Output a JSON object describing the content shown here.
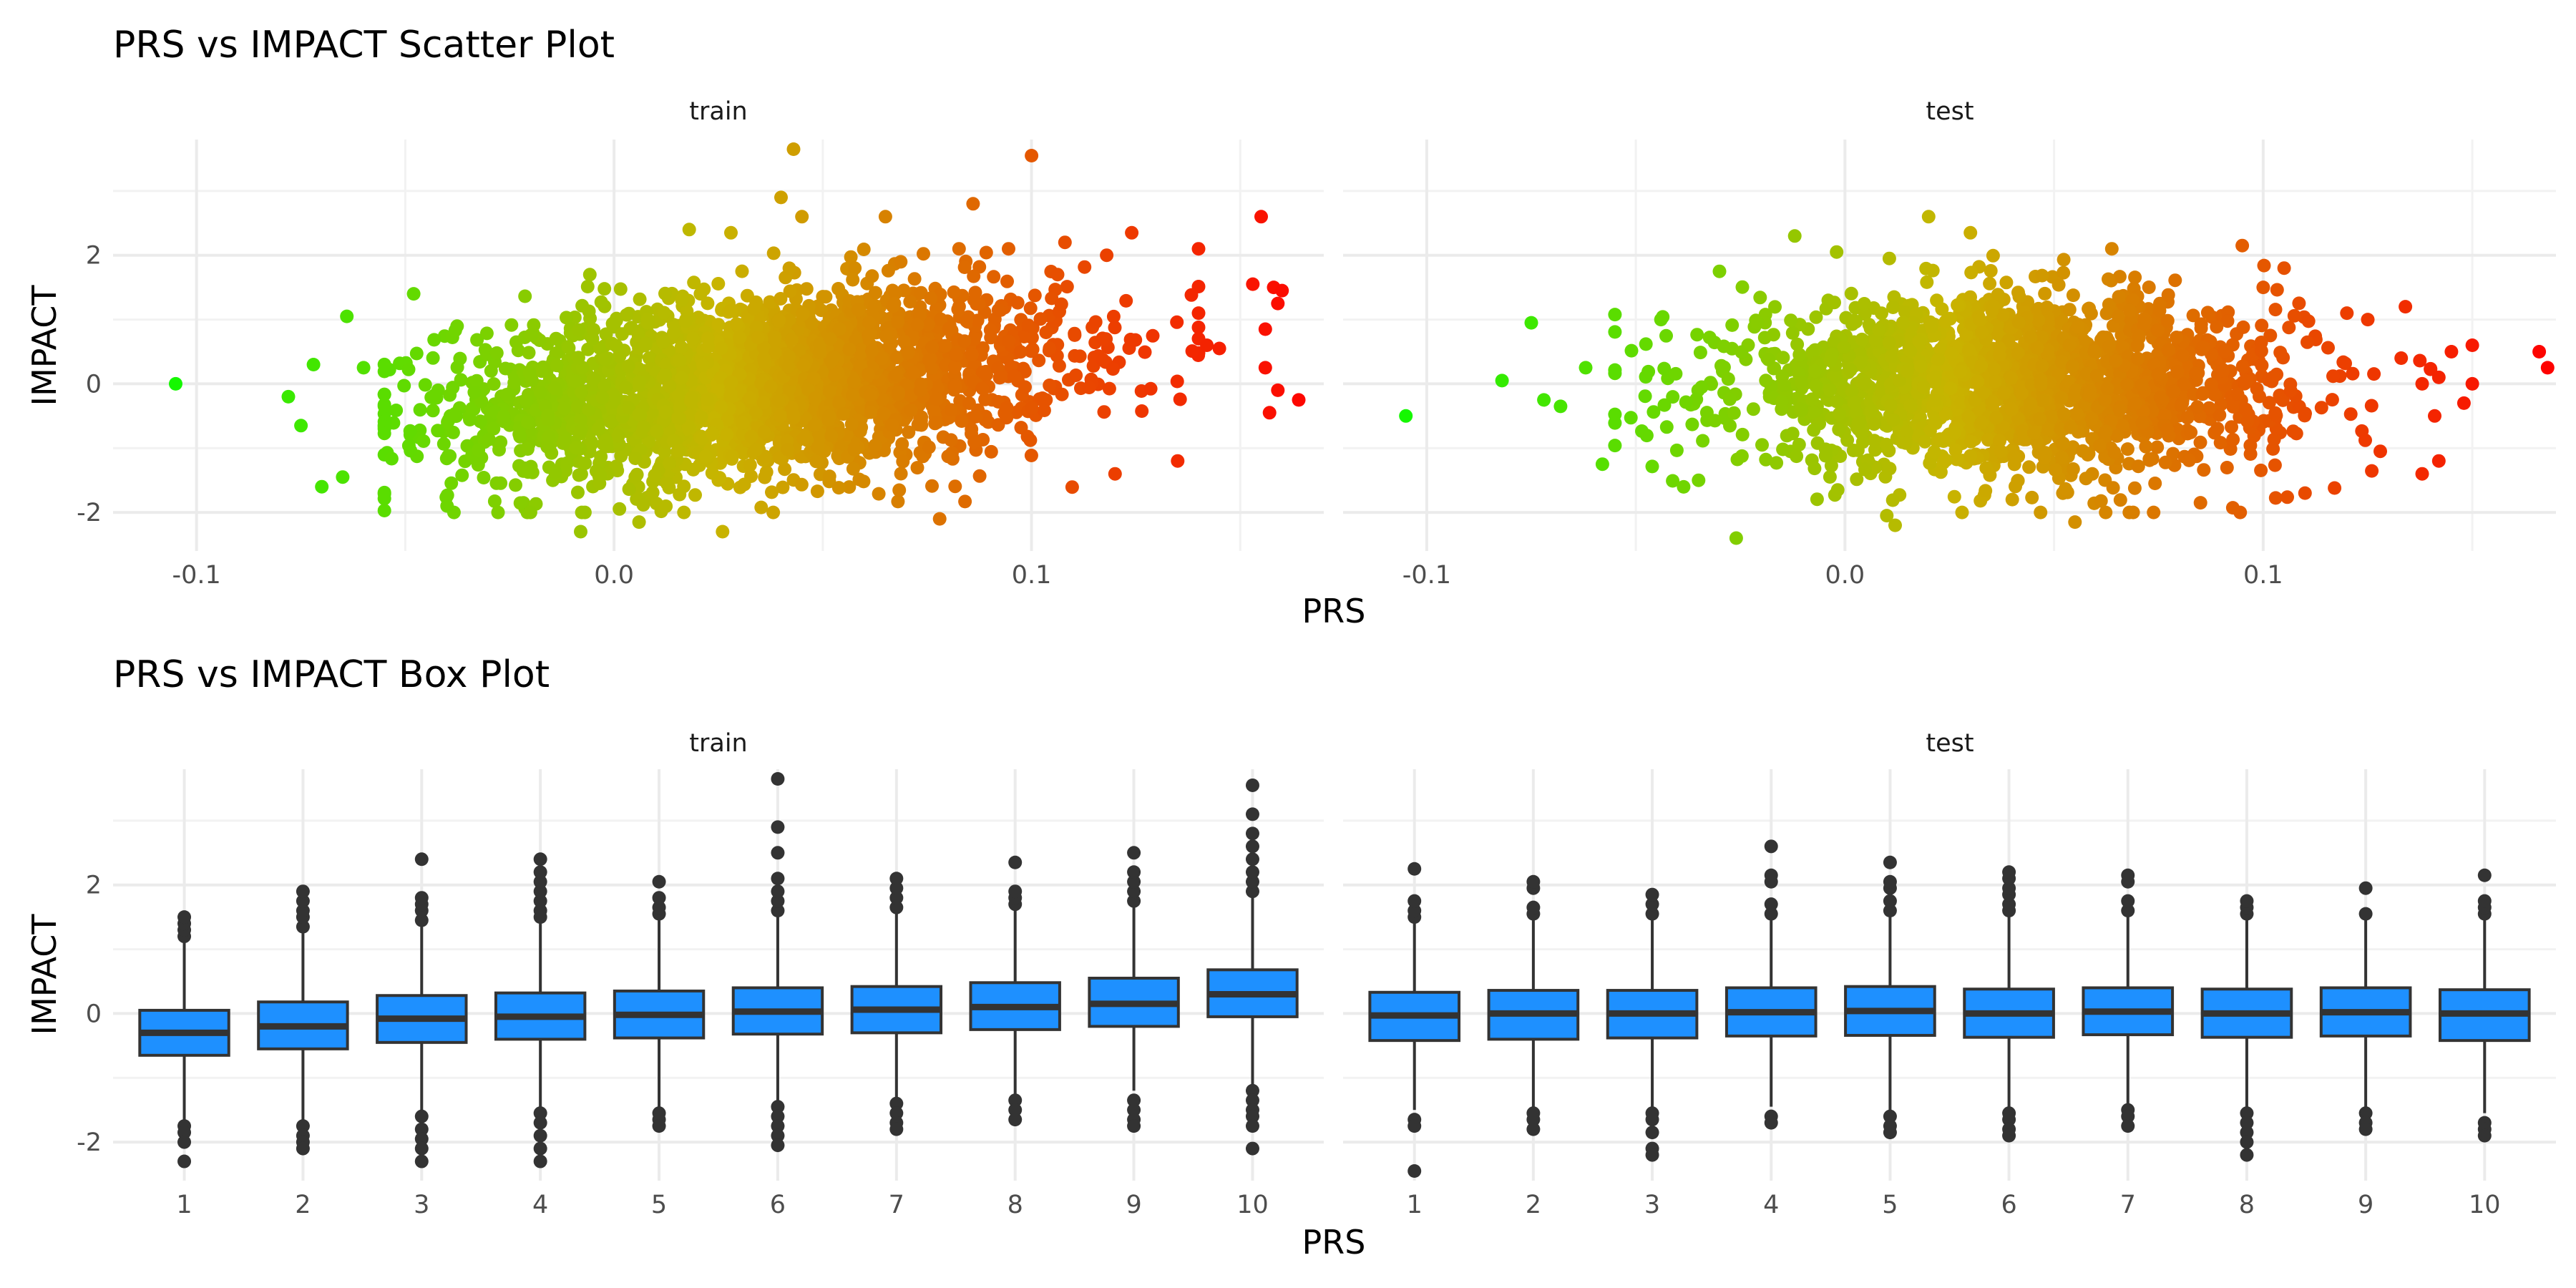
{
  "chart_data": [
    {
      "type": "scatter",
      "title": "PRS vs IMPACT Scatter Plot",
      "xlabel": "PRS",
      "ylabel": "IMPACT",
      "xlim": [
        -0.12,
        0.17
      ],
      "ylim": [
        -2.6,
        3.8
      ],
      "x_ticks": [
        "-0.1",
        "0.0",
        "0.1"
      ],
      "x_tick_values": [
        -0.1,
        0.0,
        0.1
      ],
      "y_ticks": [
        "-2",
        "0",
        "2"
      ],
      "y_tick_values": [
        -2,
        0,
        2
      ],
      "grid": true,
      "color_scale": {
        "low": "#00ff00",
        "mid": "#c8b400",
        "high": "#ff0000"
      },
      "panels": [
        {
          "name": "train",
          "cloud": {
            "x_mean": 0.035,
            "x_sd": 0.036,
            "y_mean": 0.0,
            "y_sd": 0.7,
            "slope": 5.5,
            "n": 2600
          },
          "points": [
            {
              "x": -0.105,
              "y": 0.0
            },
            {
              "x": -0.078,
              "y": -0.2
            },
            {
              "x": -0.075,
              "y": -0.65
            },
            {
              "x": -0.072,
              "y": 0.3
            },
            {
              "x": -0.07,
              "y": -1.6
            },
            {
              "x": -0.064,
              "y": 1.05
            },
            {
              "x": -0.065,
              "y": -1.45
            },
            {
              "x": -0.06,
              "y": 0.25
            },
            {
              "x": -0.048,
              "y": 1.4
            },
            {
              "x": -0.04,
              "y": -1.9
            },
            {
              "x": -0.02,
              "y": -2.0
            },
            {
              "x": -0.008,
              "y": -2.3
            },
            {
              "x": 0.006,
              "y": -2.15
            },
            {
              "x": 0.026,
              "y": -2.3
            },
            {
              "x": 0.018,
              "y": 2.4
            },
            {
              "x": 0.028,
              "y": 2.35
            },
            {
              "x": 0.04,
              "y": 2.9
            },
            {
              "x": 0.043,
              "y": 3.65
            },
            {
              "x": 0.045,
              "y": 2.6
            },
            {
              "x": 0.065,
              "y": 2.6
            },
            {
              "x": 0.078,
              "y": -2.1
            },
            {
              "x": 0.086,
              "y": 2.8
            },
            {
              "x": 0.1,
              "y": 3.55
            },
            {
              "x": 0.108,
              "y": 2.2
            },
            {
              "x": 0.118,
              "y": 2.0
            },
            {
              "x": 0.12,
              "y": -1.4
            },
            {
              "x": 0.124,
              "y": 2.35
            },
            {
              "x": 0.135,
              "y": -1.2
            },
            {
              "x": 0.14,
              "y": 1.1
            },
            {
              "x": 0.142,
              "y": 0.6
            },
            {
              "x": 0.145,
              "y": 0.55
            },
            {
              "x": 0.153,
              "y": 1.55
            },
            {
              "x": 0.155,
              "y": 2.6
            },
            {
              "x": 0.156,
              "y": 0.85
            },
            {
              "x": 0.156,
              "y": 0.25
            },
            {
              "x": 0.157,
              "y": -0.45
            },
            {
              "x": 0.158,
              "y": 1.5
            },
            {
              "x": 0.159,
              "y": -0.1
            },
            {
              "x": 0.16,
              "y": 1.45
            },
            {
              "x": 0.159,
              "y": 1.25
            },
            {
              "x": 0.164,
              "y": -0.25
            }
          ]
        },
        {
          "name": "test",
          "cloud": {
            "x_mean": 0.04,
            "x_sd": 0.033,
            "y_mean": 0.0,
            "y_sd": 0.65,
            "slope": 0.0,
            "n": 2000
          },
          "points": [
            {
              "x": -0.105,
              "y": -0.5
            },
            {
              "x": -0.082,
              "y": 0.05
            },
            {
              "x": -0.075,
              "y": 0.95
            },
            {
              "x": -0.072,
              "y": -0.25
            },
            {
              "x": -0.068,
              "y": -0.35
            },
            {
              "x": -0.062,
              "y": 0.25
            },
            {
              "x": -0.058,
              "y": -1.25
            },
            {
              "x": -0.044,
              "y": 1.0
            },
            {
              "x": -0.035,
              "y": -1.5
            },
            {
              "x": -0.03,
              "y": 1.75
            },
            {
              "x": -0.026,
              "y": -2.4
            },
            {
              "x": -0.012,
              "y": 2.3
            },
            {
              "x": -0.002,
              "y": 2.05
            },
            {
              "x": 0.01,
              "y": -2.05
            },
            {
              "x": 0.012,
              "y": -2.2
            },
            {
              "x": 0.02,
              "y": 2.6
            },
            {
              "x": 0.03,
              "y": 2.35
            },
            {
              "x": 0.04,
              "y": -1.8
            },
            {
              "x": 0.055,
              "y": -2.15
            },
            {
              "x": 0.068,
              "y": -2.0
            },
            {
              "x": 0.085,
              "y": -1.85
            },
            {
              "x": 0.095,
              "y": 2.15
            },
            {
              "x": 0.1,
              "y": 1.5
            },
            {
              "x": 0.105,
              "y": 1.8
            },
            {
              "x": 0.11,
              "y": -1.7
            },
            {
              "x": 0.12,
              "y": 1.1
            },
            {
              "x": 0.125,
              "y": 1.0
            },
            {
              "x": 0.128,
              "y": -1.05
            },
            {
              "x": 0.133,
              "y": 0.4
            },
            {
              "x": 0.134,
              "y": 1.2
            },
            {
              "x": 0.138,
              "y": -1.4
            },
            {
              "x": 0.138,
              "y": 0.0
            },
            {
              "x": 0.141,
              "y": -0.5
            },
            {
              "x": 0.142,
              "y": -1.2
            },
            {
              "x": 0.142,
              "y": 0.1
            },
            {
              "x": 0.145,
              "y": 0.5
            },
            {
              "x": 0.148,
              "y": -0.3
            },
            {
              "x": 0.15,
              "y": 0.6
            },
            {
              "x": 0.15,
              "y": 0.0
            },
            {
              "x": 0.166,
              "y": 0.5
            },
            {
              "x": 0.168,
              "y": 0.25
            }
          ]
        }
      ]
    },
    {
      "type": "box",
      "title": "PRS vs IMPACT Box Plot",
      "xlabel": "PRS",
      "ylabel": "IMPACT",
      "categories": [
        "1",
        "2",
        "3",
        "4",
        "5",
        "6",
        "7",
        "8",
        "9",
        "10"
      ],
      "ylim": [
        -2.6,
        3.8
      ],
      "y_ticks": [
        "-2",
        "0",
        "2"
      ],
      "y_tick_values": [
        -2,
        0,
        2
      ],
      "grid": true,
      "box_color": "#1e90ff",
      "line_color": "#333333",
      "panels": [
        {
          "name": "train",
          "boxes": [
            {
              "q1": -0.65,
              "median": -0.3,
              "q3": 0.05,
              "lower": -1.7,
              "upper": 1.1,
              "outliers": [
                1.2,
                1.3,
                1.4,
                1.5,
                -1.75,
                -1.85,
                -2.0,
                -2.3
              ]
            },
            {
              "q1": -0.55,
              "median": -0.2,
              "q3": 0.18,
              "lower": -1.65,
              "upper": 1.25,
              "outliers": [
                1.35,
                1.5,
                1.6,
                1.75,
                1.9,
                -1.75,
                -1.9,
                -2.0,
                -2.1
              ]
            },
            {
              "q1": -0.45,
              "median": -0.08,
              "q3": 0.28,
              "lower": -1.55,
              "upper": 1.35,
              "outliers": [
                1.45,
                1.6,
                1.7,
                1.8,
                2.4,
                -1.6,
                -1.8,
                -1.95,
                -2.1,
                -2.3
              ]
            },
            {
              "q1": -0.4,
              "median": -0.05,
              "q3": 0.32,
              "lower": -1.45,
              "upper": 1.4,
              "outliers": [
                1.5,
                1.6,
                1.75,
                1.9,
                2.05,
                2.2,
                2.4,
                -1.55,
                -1.7,
                -1.9,
                -2.1,
                -2.3
              ]
            },
            {
              "q1": -0.38,
              "median": -0.02,
              "q3": 0.35,
              "lower": -1.45,
              "upper": 1.45,
              "outliers": [
                1.55,
                1.65,
                1.8,
                2.05,
                -1.55,
                -1.65,
                -1.75
              ]
            },
            {
              "q1": -0.32,
              "median": 0.03,
              "q3": 0.4,
              "lower": -1.35,
              "upper": 1.5,
              "outliers": [
                1.6,
                1.75,
                1.9,
                2.1,
                2.5,
                2.9,
                3.65,
                -1.45,
                -1.6,
                -1.75,
                -1.9,
                -2.05
              ]
            },
            {
              "q1": -0.3,
              "median": 0.06,
              "q3": 0.42,
              "lower": -1.3,
              "upper": 1.55,
              "outliers": [
                1.65,
                1.8,
                1.95,
                2.1,
                -1.4,
                -1.55,
                -1.7,
                -1.8
              ]
            },
            {
              "q1": -0.25,
              "median": 0.1,
              "q3": 0.48,
              "lower": -1.25,
              "upper": 1.6,
              "outliers": [
                1.7,
                1.8,
                1.9,
                2.35,
                -1.35,
                -1.5,
                -1.65
              ]
            },
            {
              "q1": -0.2,
              "median": 0.15,
              "q3": 0.55,
              "lower": -1.2,
              "upper": 1.65,
              "outliers": [
                1.75,
                1.9,
                2.05,
                2.2,
                2.5,
                -1.35,
                -1.5,
                -1.65,
                -1.75
              ]
            },
            {
              "q1": -0.05,
              "median": 0.3,
              "q3": 0.68,
              "lower": -1.1,
              "upper": 1.8,
              "outliers": [
                1.9,
                2.05,
                2.2,
                2.4,
                2.6,
                2.8,
                3.1,
                3.55,
                -1.2,
                -1.35,
                -1.5,
                -1.6,
                -1.75,
                -2.1
              ]
            }
          ]
        },
        {
          "name": "test",
          "boxes": [
            {
              "q1": -0.42,
              "median": -0.03,
              "q3": 0.33,
              "lower": -1.5,
              "upper": 1.4,
              "outliers": [
                1.5,
                1.6,
                1.75,
                2.25,
                -1.65,
                -1.75,
                -2.45
              ]
            },
            {
              "q1": -0.4,
              "median": 0.0,
              "q3": 0.36,
              "lower": -1.45,
              "upper": 1.45,
              "outliers": [
                1.55,
                1.65,
                1.95,
                2.05,
                -1.55,
                -1.65,
                -1.8
              ]
            },
            {
              "q1": -0.38,
              "median": 0.0,
              "q3": 0.36,
              "lower": -1.45,
              "upper": 1.45,
              "outliers": [
                1.55,
                1.7,
                1.85,
                -1.55,
                -1.65,
                -1.85,
                -2.1,
                -2.2
              ]
            },
            {
              "q1": -0.35,
              "median": 0.02,
              "q3": 0.4,
              "lower": -1.45,
              "upper": 1.45,
              "outliers": [
                1.55,
                1.7,
                2.05,
                2.15,
                2.6,
                -1.6,
                -1.7
              ]
            },
            {
              "q1": -0.34,
              "median": 0.04,
              "q3": 0.42,
              "lower": -1.5,
              "upper": 1.5,
              "outliers": [
                1.6,
                1.75,
                1.95,
                2.05,
                2.35,
                -1.6,
                -1.75,
                -1.85
              ]
            },
            {
              "q1": -0.37,
              "median": 0.0,
              "q3": 0.38,
              "lower": -1.45,
              "upper": 1.5,
              "outliers": [
                1.6,
                1.7,
                1.85,
                1.95,
                2.1,
                2.2,
                -1.55,
                -1.65,
                -1.8,
                -1.9
              ]
            },
            {
              "q1": -0.33,
              "median": 0.03,
              "q3": 0.4,
              "lower": -1.4,
              "upper": 1.5,
              "outliers": [
                1.6,
                1.75,
                2.05,
                2.15,
                -1.5,
                -1.6,
                -1.75
              ]
            },
            {
              "q1": -0.37,
              "median": 0.0,
              "q3": 0.38,
              "lower": -1.45,
              "upper": 1.45,
              "outliers": [
                1.55,
                1.65,
                1.75,
                -1.55,
                -1.7,
                -1.85,
                -2.0,
                -2.2
              ]
            },
            {
              "q1": -0.35,
              "median": 0.02,
              "q3": 0.4,
              "lower": -1.45,
              "upper": 1.45,
              "outliers": [
                1.55,
                1.95,
                -1.55,
                -1.7,
                -1.8
              ]
            },
            {
              "q1": -0.42,
              "median": 0.0,
              "q3": 0.37,
              "lower": -1.55,
              "upper": 1.45,
              "outliers": [
                1.55,
                1.65,
                1.75,
                2.15,
                -1.7,
                -1.8,
                -1.9
              ]
            }
          ]
        }
      ]
    }
  ]
}
